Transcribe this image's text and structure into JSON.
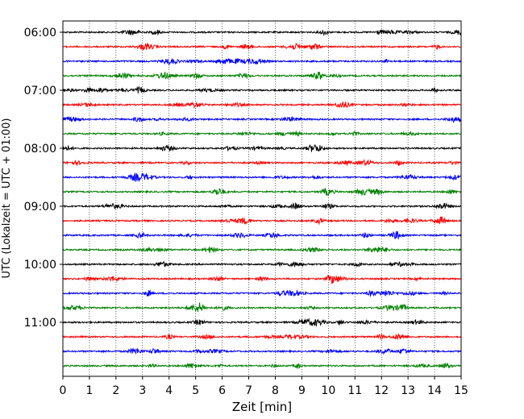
{
  "chart_data": {
    "type": "line",
    "title": "",
    "xlabel": "Zeit  [min]",
    "ylabel": "UTC (Lokalzeit = UTC + 01:00)",
    "xlim": [
      0,
      15
    ],
    "x_ticks": [
      "0",
      "1",
      "2",
      "3",
      "4",
      "5",
      "6",
      "7",
      "8",
      "9",
      "10",
      "11",
      "12",
      "13",
      "14",
      "15"
    ],
    "y_ticks": [
      "06:00",
      "07:00",
      "08:00",
      "09:00",
      "10:00",
      "11:00"
    ],
    "grid": "vertical dotted at each minute",
    "trace_start": "06:00",
    "trace_interval_min": 15,
    "trace_count": 24,
    "trace_colors": [
      "#000000",
      "#ff0000",
      "#0000ff",
      "#008000"
    ]
  }
}
